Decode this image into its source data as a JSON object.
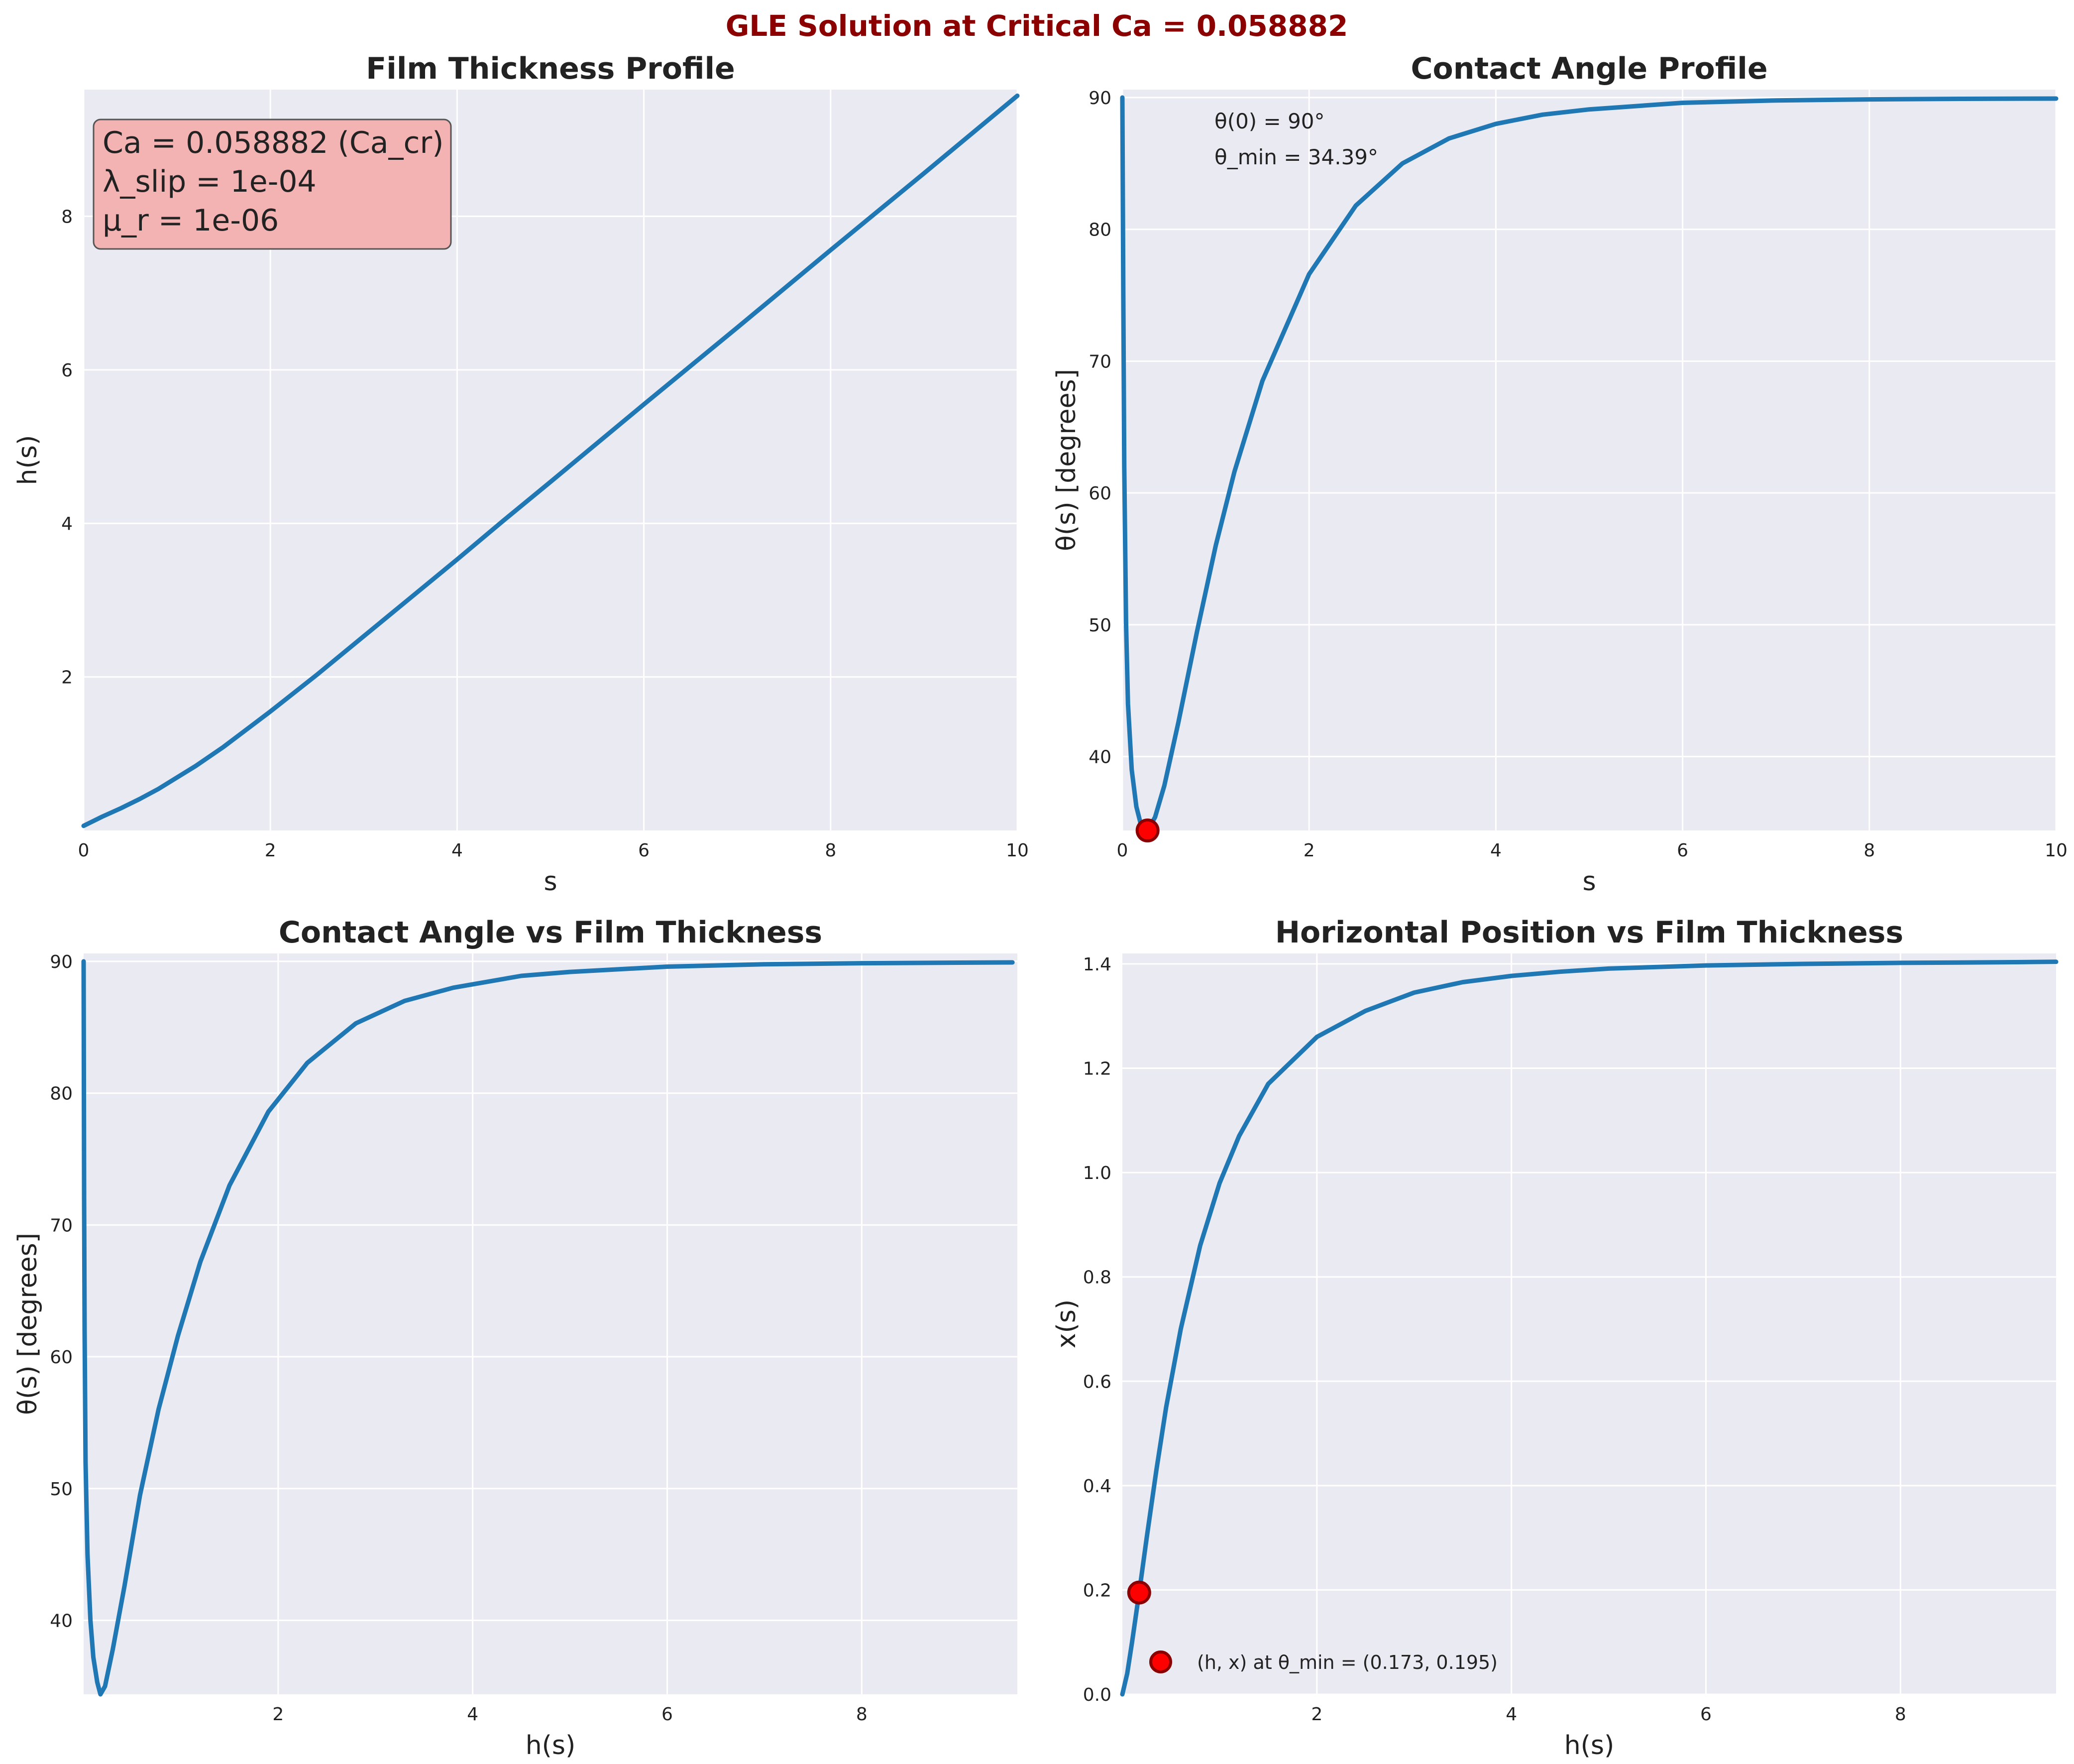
{
  "figure": {
    "suptitle": "GLE Solution at Critical Ca = 0.058882",
    "suptitle_color": "#8b0000",
    "background": "#ffffff",
    "axes_facecolor": "#eaeaf2",
    "grid_color": "#ffffff",
    "line_color": "#1f77b4",
    "marker_face": "#ff0000",
    "marker_edge": "#8b0000"
  },
  "chart_data": [
    {
      "id": "film-thickness",
      "type": "line",
      "title": "Film Thickness Profile",
      "xlabel": "s",
      "ylabel": "h(s)",
      "xlim": [
        0,
        10
      ],
      "ylim": [
        0,
        9.65
      ],
      "xticks": [
        0,
        2,
        4,
        6,
        8,
        10
      ],
      "yticks": [
        2,
        4,
        6,
        8
      ],
      "grid": true,
      "annotation": {
        "lines": [
          "Ca = 0.058882 (Ca_cr)",
          "λ_slip = 1e-04",
          "μ_r = 1e-06"
        ],
        "placement": "top-left",
        "box_color": "#f4b3b3"
      },
      "series": [
        {
          "x": [
            0,
            0.2,
            0.4,
            0.6,
            0.8,
            1.0,
            1.2,
            1.5,
            2.0,
            2.5,
            3.0,
            3.5,
            4.0,
            4.5,
            5.0,
            6.0,
            7.0,
            8.0,
            9.0,
            10.0
          ],
          "y": [
            0.06,
            0.18,
            0.29,
            0.41,
            0.54,
            0.69,
            0.84,
            1.09,
            1.55,
            2.03,
            2.53,
            3.03,
            3.53,
            4.04,
            4.54,
            5.55,
            6.55,
            7.56,
            8.56,
            9.57
          ]
        }
      ]
    },
    {
      "id": "contact-angle-profile",
      "type": "line",
      "title": "Contact Angle Profile",
      "xlabel": "s",
      "ylabel": "θ(s) [degrees]",
      "xlim": [
        0,
        10
      ],
      "ylim": [
        34.39,
        90.6
      ],
      "xticks": [
        0,
        2,
        4,
        6,
        8,
        10
      ],
      "yticks": [
        40,
        50,
        60,
        70,
        80,
        90
      ],
      "grid": true,
      "text_annotations": [
        "θ(0) = 90°",
        "θ_min = 34.39°"
      ],
      "markers": [
        {
          "x": 0.27,
          "y": 34.39
        }
      ],
      "series": [
        {
          "x": [
            0,
            0.01,
            0.02,
            0.04,
            0.06,
            0.1,
            0.15,
            0.2,
            0.27,
            0.35,
            0.45,
            0.6,
            0.8,
            1.0,
            1.2,
            1.5,
            2.0,
            2.5,
            3.0,
            3.5,
            4.0,
            4.5,
            5.0,
            6.0,
            7.0,
            8.0,
            9.0,
            10.0
          ],
          "y": [
            90,
            75,
            62,
            50,
            44,
            39,
            36.2,
            34.8,
            34.39,
            35.4,
            37.8,
            42.6,
            49.5,
            56.0,
            61.6,
            68.5,
            76.6,
            81.8,
            85.0,
            86.9,
            88.0,
            88.7,
            89.1,
            89.6,
            89.78,
            89.86,
            89.9,
            89.92
          ]
        }
      ]
    },
    {
      "id": "angle-vs-thickness",
      "type": "line",
      "title": "Contact Angle vs Film Thickness",
      "xlabel": "h(s)",
      "ylabel": "θ(s) [degrees]",
      "xlim": [
        0,
        9.6
      ],
      "ylim": [
        34.39,
        90.6
      ],
      "xticks": [
        2,
        4,
        6,
        8
      ],
      "yticks": [
        40,
        50,
        60,
        70,
        80,
        90
      ],
      "grid": true,
      "series": [
        {
          "x": [
            0.0,
            0.005,
            0.01,
            0.02,
            0.04,
            0.07,
            0.1,
            0.14,
            0.173,
            0.22,
            0.3,
            0.42,
            0.58,
            0.77,
            0.97,
            1.2,
            1.5,
            1.9,
            2.3,
            2.8,
            3.3,
            3.8,
            4.5,
            5.0,
            6.0,
            7.0,
            8.0,
            9.0,
            9.55
          ],
          "y": [
            90,
            72,
            62,
            52,
            45,
            40,
            37.2,
            35.3,
            34.39,
            35.0,
            37.8,
            42.6,
            49.5,
            56.0,
            61.6,
            67.2,
            73.0,
            78.6,
            82.3,
            85.3,
            87.0,
            88.0,
            88.9,
            89.2,
            89.6,
            89.78,
            89.86,
            89.9,
            89.92
          ]
        }
      ]
    },
    {
      "id": "position-vs-thickness",
      "type": "line",
      "title": "Horizontal Position vs Film Thickness",
      "xlabel": "h(s)",
      "ylabel": "x(s)",
      "xlim": [
        0,
        9.6
      ],
      "ylim": [
        0.0,
        1.42
      ],
      "xticks": [
        2,
        4,
        6,
        8
      ],
      "yticks": [
        0.0,
        0.2,
        0.4,
        0.6,
        0.8,
        1.0,
        1.2,
        1.4
      ],
      "grid": true,
      "markers": [
        {
          "x": 0.173,
          "y": 0.195
        }
      ],
      "legend": {
        "placement": "bottom-left",
        "label": "(h, x) at θ_min = (0.173, 0.195)"
      },
      "series": [
        {
          "x": [
            0.0,
            0.05,
            0.1,
            0.173,
            0.25,
            0.35,
            0.45,
            0.6,
            0.8,
            1.0,
            1.2,
            1.5,
            2.0,
            2.5,
            3.0,
            3.5,
            4.0,
            4.5,
            5.0,
            6.0,
            7.0,
            8.0,
            9.0,
            9.6
          ],
          "y": [
            0.0,
            0.04,
            0.1,
            0.195,
            0.3,
            0.43,
            0.55,
            0.7,
            0.86,
            0.98,
            1.07,
            1.17,
            1.26,
            1.31,
            1.345,
            1.365,
            1.377,
            1.385,
            1.391,
            1.397,
            1.4,
            1.402,
            1.403,
            1.404
          ]
        }
      ]
    }
  ]
}
